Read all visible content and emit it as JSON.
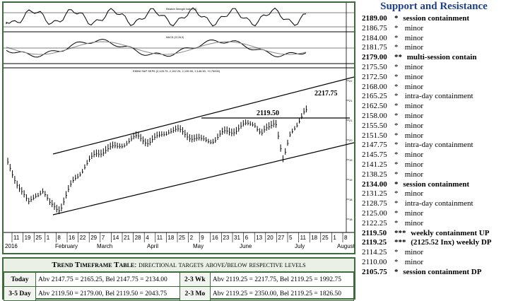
{
  "chart": {
    "header_osc1": "Relative Strength Index (14)",
    "header_osc2": "MACD (12,26,9)",
    "header_main": "EMINI S&P SEP6 (2,145.75, 2,152.25, 2,139.50, 2,146.50, +0.75000)",
    "annotation_high": "2217.75",
    "annotation_mid": "2119.50",
    "date_ticks": [
      "11",
      "19",
      "25",
      "1",
      "8",
      "16",
      "22",
      "29",
      "7",
      "14",
      "21",
      "28",
      "4",
      "11",
      "18",
      "25",
      "2",
      "9",
      "16",
      "23",
      "31",
      "6",
      "13",
      "20",
      "27",
      "5",
      "11",
      "18",
      "25",
      "1",
      "8"
    ],
    "month_labels": [
      "2016",
      "February",
      "March",
      "April",
      "May",
      "June",
      "July",
      "August"
    ],
    "price_ticks": [
      "22",
      "21",
      "21",
      "20",
      "19",
      "19",
      "18",
      "18"
    ],
    "colors": {
      "frame": "#3c6b3c",
      "line": "#000000",
      "sr_title": "#1f3f8a"
    }
  },
  "trend": {
    "title_caps": "Trend Timeframe Table",
    "title_rest": ": directional targets above/below respective levels",
    "rows": [
      {
        "label": "Today",
        "text1": "Abv 2147.75 = 2165.25, Bel 2147.75 = 2134.00",
        "mid": "2-3 Wk",
        "text2": "Abv 2119.25 = 2217.75, Bel 2119.25 = 1992.75"
      },
      {
        "label": "3-5 Day",
        "text1": "Abv 2119.50 = 2179.00, Bel 2119.50 = 2043.75",
        "mid": "2-3 Mo",
        "text2": "Abv 2119.25 = 2350.00, Bel 2119.25 = 1826.50"
      }
    ]
  },
  "support_resistance": {
    "title": "Support and Resistance",
    "levels": [
      {
        "price": "2189.00",
        "stars": "*",
        "note": "session containment",
        "bold": true
      },
      {
        "price": "2186.75",
        "stars": "*",
        "note": "minor",
        "bold": false
      },
      {
        "price": "2184.00",
        "stars": "*",
        "note": "minor",
        "bold": false
      },
      {
        "price": "2181.75",
        "stars": "*",
        "note": "minor",
        "bold": false
      },
      {
        "price": "2179.00",
        "stars": "**",
        "note": "multi-session contain",
        "bold": true
      },
      {
        "price": "2175.50",
        "stars": "*",
        "note": "minor",
        "bold": false
      },
      {
        "price": "2172.50",
        "stars": "*",
        "note": "minor",
        "bold": false
      },
      {
        "price": "2168.00",
        "stars": "*",
        "note": "minor",
        "bold": false
      },
      {
        "price": "2165.25",
        "stars": "*",
        "note": "intra-day containment",
        "bold": false
      },
      {
        "price": "2162.50",
        "stars": "*",
        "note": "minor",
        "bold": false
      },
      {
        "price": "2158.00",
        "stars": "*",
        "note": "minor",
        "bold": false
      },
      {
        "price": "2155.50",
        "stars": "*",
        "note": "minor",
        "bold": false
      },
      {
        "price": "2151.50",
        "stars": "*",
        "note": "minor",
        "bold": false
      },
      {
        "price": "2147.75",
        "stars": "*",
        "note": "intra-day containment",
        "bold": false
      },
      {
        "price": "2145.75",
        "stars": "*",
        "note": "minor",
        "bold": false
      },
      {
        "price": "2141.25",
        "stars": "*",
        "note": "minor",
        "bold": false
      },
      {
        "price": "2138.25",
        "stars": "*",
        "note": "minor",
        "bold": false
      },
      {
        "price": "2134.00",
        "stars": "*",
        "note": "session containment",
        "bold": true
      },
      {
        "price": "2131.25",
        "stars": "*",
        "note": "minor",
        "bold": false
      },
      {
        "price": "2128.75",
        "stars": "*",
        "note": "intra-day containment",
        "bold": false
      },
      {
        "price": "2125.00",
        "stars": "*",
        "note": "minor",
        "bold": false
      },
      {
        "price": "2122.25",
        "stars": "*",
        "note": "minor",
        "bold": false
      },
      {
        "price": "2119.50",
        "stars": "***",
        "note": "weekly containment UP",
        "bold": true
      },
      {
        "price": "2119.25",
        "stars": "***",
        "note": "(2125.52 Inx) weekly DP",
        "bold": true
      },
      {
        "price": "2114.25",
        "stars": "*",
        "note": "minor",
        "bold": false
      },
      {
        "price": "2110.00",
        "stars": "*",
        "note": "minor",
        "bold": false
      },
      {
        "price": "2105.75",
        "stars": "*",
        "note": "session containment DP",
        "bold": true
      }
    ]
  }
}
